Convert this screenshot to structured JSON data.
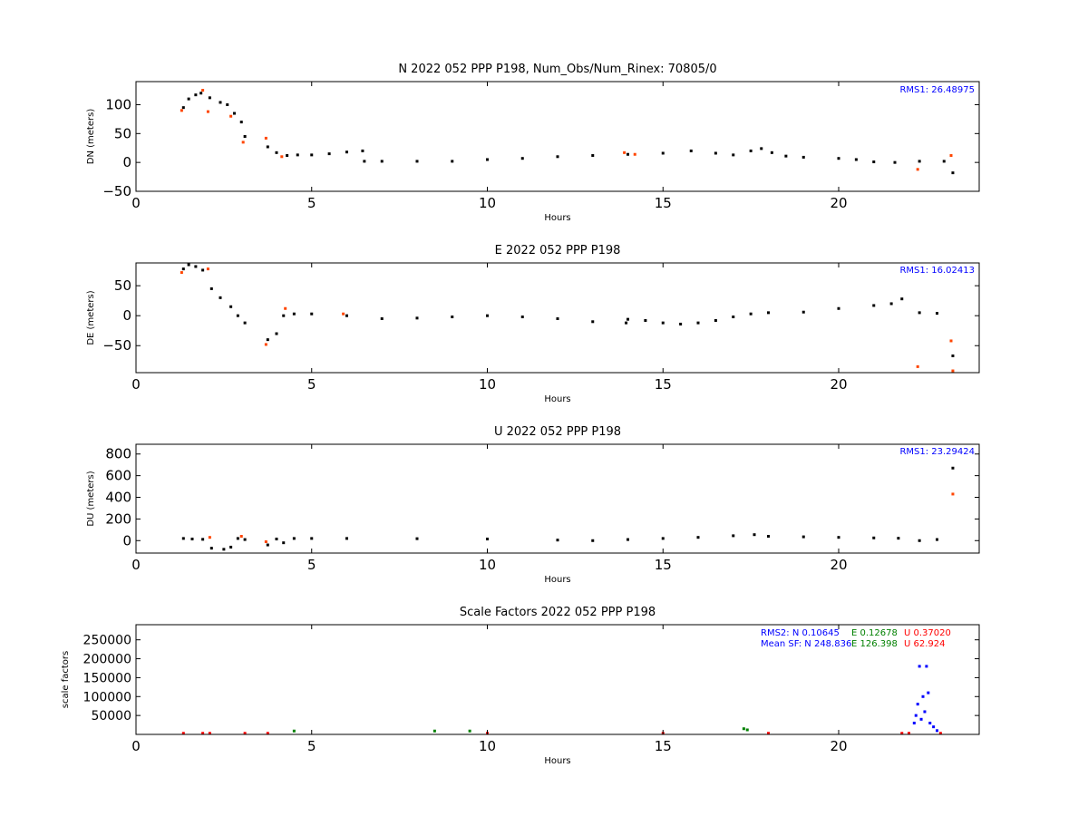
{
  "chart_data": [
    {
      "type": "scatter",
      "title": "N 2022 052 PPP  P198, Num_Obs/Num_Rinex: 70805/0",
      "xlabel": "Hours",
      "ylabel": "DN (meters)",
      "xlim": [
        0,
        24
      ],
      "ylim": [
        -50,
        140
      ],
      "xticks": [
        0,
        5,
        10,
        15,
        20
      ],
      "yticks": [
        -50,
        0,
        50,
        100
      ],
      "annotations": [
        {
          "text": "RMS1: 26.48975",
          "color": "#0000ff"
        }
      ],
      "series": [
        {
          "color": "#000000",
          "x": [
            1.35,
            1.5,
            1.7,
            1.85,
            2.1,
            2.4,
            2.6,
            2.8,
            3.0,
            3.1,
            3.75,
            4.0,
            4.3,
            4.6,
            5.0,
            5.5,
            6.0,
            6.45,
            6.5,
            7.0,
            8.0,
            9.0,
            10.0,
            11.0,
            12.0,
            13.0,
            14.0,
            15.0,
            15.8,
            16.5,
            17.0,
            17.5,
            17.8,
            18.1,
            18.5,
            19.0,
            20.0,
            20.5,
            21.0,
            21.6,
            22.3,
            23.0,
            23.25
          ],
          "y": [
            95,
            110,
            117,
            120,
            112,
            104,
            100,
            85,
            70,
            45,
            27,
            17,
            12,
            13,
            13,
            15,
            18,
            20,
            2,
            2,
            2,
            2,
            5,
            7,
            10,
            12,
            14,
            16,
            20,
            16,
            13,
            20,
            24,
            17,
            11,
            9,
            7,
            5,
            1,
            0,
            2,
            2,
            -18
          ]
        },
        {
          "color": "#ff4500",
          "x": [
            1.3,
            1.9,
            2.05,
            2.7,
            3.05,
            3.7,
            4.15,
            13.9,
            14.2,
            22.25,
            23.2
          ],
          "y": [
            90,
            125,
            88,
            80,
            35,
            42,
            10,
            17,
            14,
            -12,
            12
          ]
        }
      ]
    },
    {
      "type": "scatter",
      "title": "E 2022 052 PPP  P198",
      "xlabel": "Hours",
      "ylabel": "DE (meters)",
      "xlim": [
        0,
        24
      ],
      "ylim": [
        -95,
        88
      ],
      "xticks": [
        0,
        5,
        10,
        15,
        20
      ],
      "yticks": [
        -50,
        0,
        50
      ],
      "annotations": [
        {
          "text": "RMS1: 16.02413",
          "color": "#0000ff"
        }
      ],
      "series": [
        {
          "color": "#000000",
          "x": [
            1.35,
            1.5,
            1.7,
            1.9,
            2.15,
            2.4,
            2.7,
            2.9,
            3.1,
            3.75,
            4.0,
            4.2,
            4.5,
            5.0,
            6.0,
            7.0,
            8.0,
            9.0,
            10.0,
            11.0,
            12.0,
            13.0,
            13.95,
            14.0,
            14.5,
            15.0,
            15.5,
            16.0,
            16.5,
            17.0,
            17.5,
            18.0,
            19.0,
            20.0,
            21.0,
            21.5,
            21.8,
            22.3,
            22.8,
            23.25
          ],
          "y": [
            78,
            85,
            82,
            76,
            45,
            30,
            15,
            0,
            -12,
            -40,
            -30,
            0,
            3,
            3,
            0,
            -5,
            -4,
            -2,
            0,
            -2,
            -5,
            -10,
            -12,
            -6,
            -8,
            -12,
            -14,
            -12,
            -8,
            -2,
            3,
            5,
            6,
            12,
            17,
            20,
            28,
            5,
            4,
            -67
          ]
        },
        {
          "color": "#ff4500",
          "x": [
            1.3,
            2.05,
            3.7,
            4.25,
            5.9,
            22.25,
            23.2,
            23.25
          ],
          "y": [
            72,
            78,
            -48,
            12,
            3,
            -85,
            -42,
            -92
          ]
        }
      ]
    },
    {
      "type": "scatter",
      "title": "U 2022 052 PPP  P198",
      "xlabel": "Hours",
      "ylabel": "DU (meters)",
      "xlim": [
        0,
        24
      ],
      "ylim": [
        -115,
        890
      ],
      "xticks": [
        0,
        5,
        10,
        15,
        20
      ],
      "yticks": [
        0,
        200,
        400,
        600,
        800
      ],
      "annotations": [
        {
          "text": "RMS1: 23.29424",
          "color": "#0000ff"
        }
      ],
      "series": [
        {
          "color": "#000000",
          "x": [
            1.35,
            1.6,
            1.9,
            2.15,
            2.5,
            2.7,
            2.9,
            3.1,
            3.75,
            4.0,
            4.2,
            4.5,
            5.0,
            6.0,
            8.0,
            10.0,
            12.0,
            13.0,
            14.0,
            15.0,
            16.0,
            17.0,
            17.6,
            18.0,
            19.0,
            20.0,
            21.0,
            21.7,
            22.3,
            22.8,
            23.25
          ],
          "y": [
            20,
            15,
            12,
            -70,
            -80,
            -60,
            20,
            10,
            -40,
            15,
            -20,
            20,
            20,
            20,
            18,
            15,
            5,
            0,
            10,
            20,
            30,
            45,
            55,
            40,
            35,
            30,
            25,
            22,
            0,
            10,
            670
          ]
        },
        {
          "color": "#ff4500",
          "x": [
            2.1,
            3.0,
            3.7,
            23.25
          ],
          "y": [
            30,
            40,
            -10,
            430
          ]
        }
      ]
    },
    {
      "type": "scatter",
      "title": "Scale Factors 2022 052 PPP  P198",
      "xlabel": "Hours",
      "ylabel": "scale factors",
      "xlim": [
        0,
        24
      ],
      "ylim": [
        0,
        290000
      ],
      "xticks": [
        0,
        5,
        10,
        15,
        20
      ],
      "yticks": [
        50000,
        100000,
        150000,
        200000,
        250000
      ],
      "annotations": [
        {
          "text": "RMS2: N  0.10645",
          "color": "#0000ff"
        },
        {
          "text": "E  0.12678",
          "color": "#008000"
        },
        {
          "text": "U  0.37020",
          "color": "#ff0000"
        },
        {
          "text": "Mean SF: N 248.836",
          "color": "#0000ff"
        },
        {
          "text": "E 126.398",
          "color": "#008000"
        },
        {
          "text": "U  62.924",
          "color": "#ff0000"
        }
      ],
      "series": [
        {
          "name": "N",
          "color": "#0000ff",
          "x": [
            22.15,
            22.2,
            22.25,
            22.3,
            22.35,
            22.4,
            22.45,
            22.5,
            22.55,
            22.6,
            22.7,
            22.8
          ],
          "y": [
            30000,
            50000,
            80000,
            180000,
            40000,
            100000,
            60000,
            180000,
            110000,
            30000,
            20000,
            10000
          ]
        },
        {
          "name": "E",
          "color": "#008000",
          "x": [
            4.5,
            8.5,
            9.5,
            17.3,
            17.4
          ],
          "y": [
            9000,
            9000,
            9000,
            15000,
            12000
          ]
        },
        {
          "name": "U",
          "color": "#ff0000",
          "x": [
            1.35,
            1.9,
            2.1,
            3.1,
            3.75,
            10.0,
            15.0,
            18.0,
            21.8,
            22.0,
            22.9
          ],
          "y": [
            3000,
            3000,
            3000,
            3000,
            3000,
            3000,
            3000,
            3000,
            3000,
            3000,
            3000
          ]
        }
      ]
    }
  ]
}
